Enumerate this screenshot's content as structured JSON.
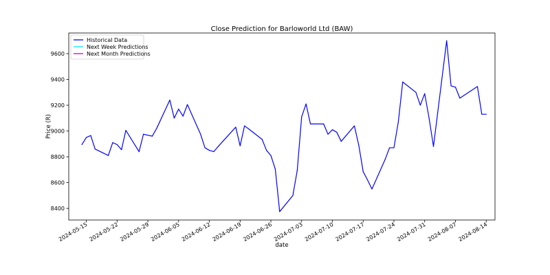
{
  "chart_data": {
    "type": "line",
    "title": "Close Prediction for Barloworld Ltd (BAW)",
    "xlabel": "date",
    "ylabel": "Price (R)",
    "x_range": [
      "2024-05-11",
      "2024-08-16"
    ],
    "ylim": [
      8310,
      9760
    ],
    "y_ticks": [
      8400,
      8600,
      8800,
      9000,
      9200,
      9400,
      9600
    ],
    "x_ticks": [
      "2024-05-15",
      "2024-05-22",
      "2024-05-29",
      "2024-06-05",
      "2024-06-12",
      "2024-06-19",
      "2024-06-26",
      "2024-07-03",
      "2024-07-10",
      "2024-07-17",
      "2024-07-24",
      "2024-07-31",
      "2024-08-07",
      "2024-08-14"
    ],
    "grid": false,
    "legend_position": "upper left",
    "colors": {
      "Historical Data": "#0000ff",
      "Next Week Predictions": "#00e5ee",
      "Next Month Predictions": "#cc00cc"
    },
    "series": [
      {
        "name": "Historical Data",
        "x": [
          "2024-05-14",
          "2024-05-15",
          "2024-05-16",
          "2024-05-17",
          "2024-05-20",
          "2024-05-21",
          "2024-05-22",
          "2024-05-23",
          "2024-05-24",
          "2024-05-27",
          "2024-05-28",
          "2024-05-30",
          "2024-05-31",
          "2024-06-03",
          "2024-06-04",
          "2024-06-05",
          "2024-06-06",
          "2024-06-07",
          "2024-06-10",
          "2024-06-11",
          "2024-06-12",
          "2024-06-13",
          "2024-06-14",
          "2024-06-18",
          "2024-06-19",
          "2024-06-20",
          "2024-06-21",
          "2024-06-24",
          "2024-06-25",
          "2024-06-26",
          "2024-06-27",
          "2024-06-28",
          "2024-07-01",
          "2024-07-02",
          "2024-07-03",
          "2024-07-04",
          "2024-07-05",
          "2024-07-08",
          "2024-07-09",
          "2024-07-10",
          "2024-07-11",
          "2024-07-12",
          "2024-07-15",
          "2024-07-16",
          "2024-07-17",
          "2024-07-18",
          "2024-07-19",
          "2024-07-22",
          "2024-07-23",
          "2024-07-24",
          "2024-07-25",
          "2024-07-26",
          "2024-07-29",
          "2024-07-30",
          "2024-07-31",
          "2024-08-01",
          "2024-08-02",
          "2024-08-05",
          "2024-08-06",
          "2024-08-07",
          "2024-08-08",
          "2024-08-12",
          "2024-08-13",
          "2024-08-14"
        ],
        "values": [
          8895,
          8950,
          8965,
          8860,
          8810,
          8910,
          8895,
          8855,
          9005,
          8840,
          8975,
          8960,
          9020,
          9240,
          9100,
          9170,
          9115,
          9205,
          8975,
          8870,
          8850,
          8840,
          8880,
          9030,
          8885,
          9040,
          9015,
          8935,
          8850,
          8810,
          8705,
          8375,
          8500,
          8695,
          9110,
          9210,
          9055,
          9055,
          8975,
          9010,
          8990,
          8920,
          9040,
          8890,
          8685,
          8620,
          8550,
          8780,
          8870,
          8870,
          9070,
          9380,
          9300,
          9200,
          9290,
          9100,
          8880,
          9700,
          9350,
          9340,
          9255,
          9345,
          9130,
          9130
        ]
      },
      {
        "name": "Next Week Predictions",
        "x": [],
        "values": []
      },
      {
        "name": "Next Month Predictions",
        "x": [],
        "values": []
      }
    ]
  }
}
